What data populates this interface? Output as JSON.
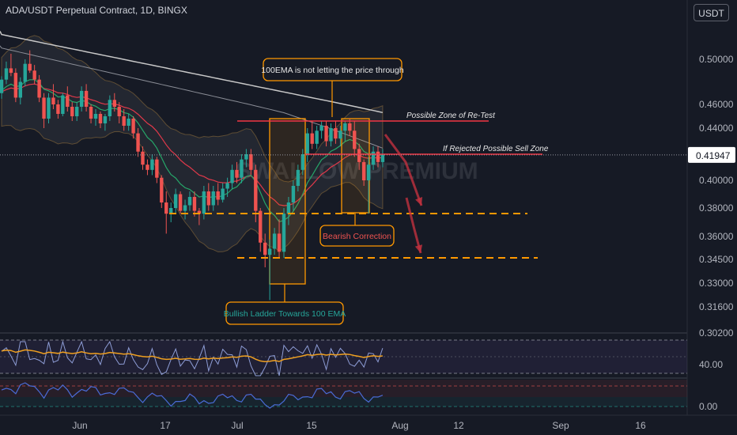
{
  "header": {
    "title": "ADA/USDT Perpetual Contract, 1D, BINGX"
  },
  "currency_button": {
    "label": "USDT"
  },
  "watermark": {
    "text": "SWALLOW PREMIUM"
  },
  "price_axis": {
    "ticks": [
      "0.50000",
      "0.46000",
      "0.44000",
      "0.40000",
      "0.38000",
      "0.36000",
      "0.34500",
      "0.33000",
      "0.31600",
      "0.30200"
    ],
    "current_price": "0.41947"
  },
  "time_axis": {
    "ticks": [
      "Jun",
      "17",
      "Jul",
      "15",
      "Aug",
      "12",
      "Sep",
      "16"
    ]
  },
  "rsi_panel": {
    "label": "40.00"
  },
  "lower_panel": {
    "label": "0.00"
  },
  "annotations": {
    "ema_note": "100EMA is not letting the price through",
    "retest_zone": "Possible Zone of Re-Test",
    "sell_zone": "If Rejected Possible Sell Zone",
    "bearish": "Bearish Correction",
    "bullish": "Bullish Ladder Towards 100 EMA"
  },
  "colors": {
    "up": "#26a69a",
    "down": "#ef5350",
    "orange": "#ff9800",
    "red_line": "#f23645",
    "ema_white": "#c8c8c8",
    "ema_red": "#e0394a",
    "ema_green": "#26a669",
    "rsi_line": "#8e9dd6",
    "rsi_ma": "#f0a020"
  },
  "chart_data": {
    "type": "candlestick",
    "title": "ADA/USDT Perpetual Contract, 1D, BINGX",
    "y_ticks": [
      0.5,
      0.46,
      0.44,
      0.4,
      0.38,
      0.36,
      0.345,
      0.33,
      0.316,
      0.302
    ],
    "current_price": 0.41947,
    "levels": {
      "retest_zone": 0.446,
      "sell_zone": 0.4205,
      "support_1": 0.375,
      "support_2": 0.345
    },
    "candles": [
      [
        0.47,
        0.485,
        0.465,
        0.482
      ],
      [
        0.482,
        0.498,
        0.478,
        0.492
      ],
      [
        0.492,
        0.505,
        0.485,
        0.488
      ],
      [
        0.488,
        0.492,
        0.462,
        0.466
      ],
      [
        0.466,
        0.484,
        0.46,
        0.48
      ],
      [
        0.48,
        0.5,
        0.476,
        0.496
      ],
      [
        0.496,
        0.508,
        0.488,
        0.49
      ],
      [
        0.49,
        0.495,
        0.478,
        0.482
      ],
      [
        0.482,
        0.486,
        0.462,
        0.466
      ],
      [
        0.466,
        0.47,
        0.44,
        0.448
      ],
      [
        0.448,
        0.47,
        0.444,
        0.466
      ],
      [
        0.466,
        0.478,
        0.456,
        0.46
      ],
      [
        0.46,
        0.464,
        0.448,
        0.452
      ],
      [
        0.452,
        0.47,
        0.45,
        0.468
      ],
      [
        0.468,
        0.476,
        0.454,
        0.458
      ],
      [
        0.458,
        0.462,
        0.446,
        0.45
      ],
      [
        0.45,
        0.462,
        0.446,
        0.458
      ],
      [
        0.458,
        0.476,
        0.454,
        0.472
      ],
      [
        0.472,
        0.478,
        0.454,
        0.458
      ],
      [
        0.458,
        0.46,
        0.444,
        0.448
      ],
      [
        0.448,
        0.456,
        0.442,
        0.452
      ],
      [
        0.452,
        0.454,
        0.44,
        0.444
      ],
      [
        0.444,
        0.452,
        0.438,
        0.45
      ],
      [
        0.45,
        0.468,
        0.446,
        0.464
      ],
      [
        0.464,
        0.47,
        0.454,
        0.458
      ],
      [
        0.458,
        0.462,
        0.444,
        0.45
      ],
      [
        0.45,
        0.456,
        0.438,
        0.442
      ],
      [
        0.442,
        0.452,
        0.438,
        0.448
      ],
      [
        0.448,
        0.45,
        0.432,
        0.436
      ],
      [
        0.436,
        0.44,
        0.418,
        0.422
      ],
      [
        0.422,
        0.426,
        0.408,
        0.412
      ],
      [
        0.412,
        0.416,
        0.404,
        0.408
      ],
      [
        0.408,
        0.42,
        0.404,
        0.416
      ],
      [
        0.416,
        0.418,
        0.398,
        0.402
      ],
      [
        0.402,
        0.404,
        0.38,
        0.384
      ],
      [
        0.384,
        0.392,
        0.362,
        0.376
      ],
      [
        0.376,
        0.384,
        0.37,
        0.38
      ],
      [
        0.38,
        0.394,
        0.376,
        0.39
      ],
      [
        0.39,
        0.392,
        0.376,
        0.378
      ],
      [
        0.378,
        0.386,
        0.372,
        0.382
      ],
      [
        0.382,
        0.392,
        0.378,
        0.388
      ],
      [
        0.388,
        0.392,
        0.374,
        0.378
      ],
      [
        0.378,
        0.38,
        0.368,
        0.376
      ],
      [
        0.376,
        0.396,
        0.372,
        0.392
      ],
      [
        0.392,
        0.398,
        0.378,
        0.382
      ],
      [
        0.382,
        0.396,
        0.378,
        0.392
      ],
      [
        0.392,
        0.398,
        0.382,
        0.386
      ],
      [
        0.386,
        0.398,
        0.384,
        0.394
      ],
      [
        0.394,
        0.402,
        0.388,
        0.398
      ],
      [
        0.398,
        0.412,
        0.394,
        0.408
      ],
      [
        0.408,
        0.414,
        0.398,
        0.402
      ],
      [
        0.402,
        0.42,
        0.398,
        0.416
      ],
      [
        0.416,
        0.424,
        0.41,
        0.42
      ],
      [
        0.42,
        0.424,
        0.404,
        0.408
      ],
      [
        0.408,
        0.412,
        0.37,
        0.378
      ],
      [
        0.378,
        0.38,
        0.35,
        0.356
      ],
      [
        0.356,
        0.362,
        0.34,
        0.348
      ],
      [
        0.348,
        0.358,
        0.32,
        0.352
      ],
      [
        0.352,
        0.366,
        0.348,
        0.362
      ],
      [
        0.362,
        0.372,
        0.346,
        0.35
      ],
      [
        0.35,
        0.38,
        0.346,
        0.376
      ],
      [
        0.376,
        0.388,
        0.368,
        0.384
      ],
      [
        0.384,
        0.4,
        0.378,
        0.396
      ],
      [
        0.396,
        0.412,
        0.392,
        0.408
      ],
      [
        0.408,
        0.424,
        0.404,
        0.42
      ],
      [
        0.42,
        0.44,
        0.414,
        0.436
      ],
      [
        0.436,
        0.446,
        0.424,
        0.428
      ],
      [
        0.428,
        0.442,
        0.424,
        0.438
      ],
      [
        0.438,
        0.446,
        0.432,
        0.442
      ],
      [
        0.442,
        0.446,
        0.426,
        0.43
      ],
      [
        0.43,
        0.444,
        0.426,
        0.44
      ],
      [
        0.44,
        0.446,
        0.428,
        0.432
      ],
      [
        0.432,
        0.442,
        0.426,
        0.438
      ],
      [
        0.438,
        0.446,
        0.43,
        0.444
      ],
      [
        0.444,
        0.448,
        0.434,
        0.438
      ],
      [
        0.438,
        0.446,
        0.418,
        0.424
      ],
      [
        0.424,
        0.428,
        0.408,
        0.414
      ],
      [
        0.414,
        0.416,
        0.396,
        0.4
      ],
      [
        0.4,
        0.418,
        0.376,
        0.412
      ],
      [
        0.412,
        0.426,
        0.408,
        0.422
      ],
      [
        0.422,
        0.426,
        0.41,
        0.414
      ],
      [
        0.414,
        0.424,
        0.41,
        0.42
      ]
    ]
  }
}
